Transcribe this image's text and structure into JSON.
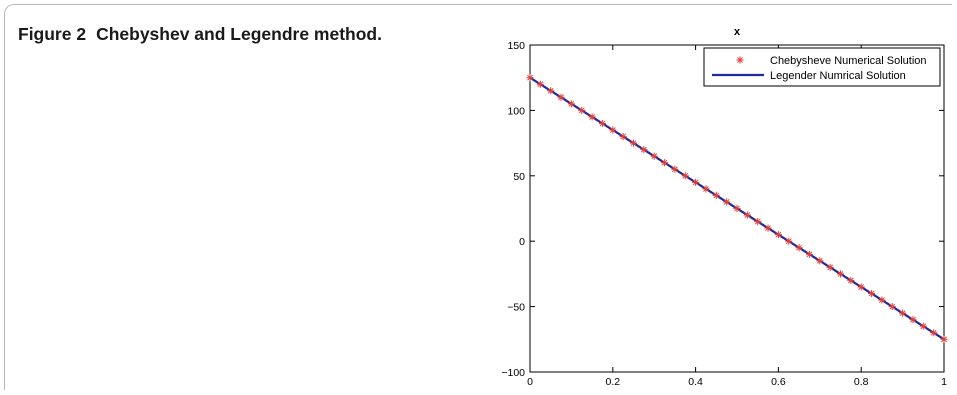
{
  "figure": {
    "label": "Figure 2",
    "caption": "Chebyshev and Legendre method."
  },
  "chart_data": {
    "type": "line",
    "title": "x",
    "xlabel": "",
    "ylabel": "",
    "xlim": [
      0,
      1
    ],
    "ylim": [
      -100,
      150
    ],
    "xticks": [
      0,
      0.2,
      0.4,
      0.6,
      0.8,
      1
    ],
    "xtick_labels": [
      "0",
      "0.2",
      "0.4",
      "0.6",
      "0.8",
      "1"
    ],
    "yticks": [
      -100,
      -50,
      0,
      50,
      100,
      150
    ],
    "ytick_labels": [
      "−100",
      "−50",
      "0",
      "50",
      "100",
      "150"
    ],
    "legend_position": "top-right",
    "series": [
      {
        "name": "Chebysheve Numerical Solution",
        "marker": "asterisk",
        "color": "#e0403c",
        "x": [
          0,
          0.025,
          0.05,
          0.075,
          0.1,
          0.125,
          0.15,
          0.175,
          0.2,
          0.225,
          0.25,
          0.275,
          0.3,
          0.325,
          0.35,
          0.375,
          0.4,
          0.425,
          0.45,
          0.475,
          0.5,
          0.525,
          0.55,
          0.575,
          0.6,
          0.625,
          0.65,
          0.675,
          0.7,
          0.725,
          0.75,
          0.775,
          0.8,
          0.825,
          0.85,
          0.875,
          0.9,
          0.925,
          0.95,
          0.975,
          1
        ],
        "y": [
          125,
          120,
          115,
          110,
          105,
          100,
          95,
          90,
          85,
          80,
          75,
          70,
          65,
          60,
          55,
          50,
          45,
          40,
          35,
          30,
          25,
          20,
          15,
          10,
          5,
          0,
          -5,
          -10,
          -15,
          -20,
          -25,
          -30,
          -35,
          -40,
          -45,
          -50,
          -55,
          -60,
          -65,
          -70,
          -75
        ]
      },
      {
        "name": "Legender Numrical Solution",
        "marker": "line",
        "color": "#1f2a9c",
        "x": [
          0,
          1
        ],
        "y": [
          125,
          -75
        ]
      }
    ]
  }
}
